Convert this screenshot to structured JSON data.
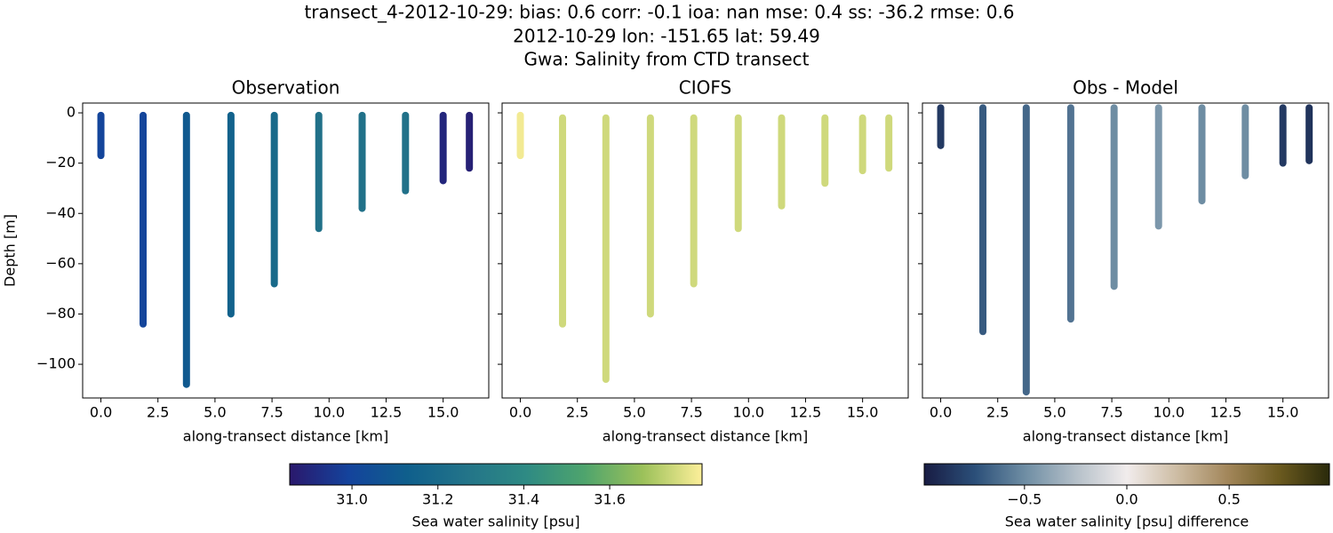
{
  "suptitle": [
    "transect_4-2012-10-29: bias: 0.6  corr: -0.1  ioa: nan  mse: 0.4  ss: -36.2  rmse: 0.6",
    "2012-10-29 lon: -151.65 lat: 59.49",
    "Gwa: Salinity from CTD transect"
  ],
  "colorbars": [
    {
      "label": "Sea water salinity [psu]",
      "lim": [
        30.855,
        31.815
      ],
      "ticks": [
        {
          "value": 31.0,
          "label": "31.0"
        },
        31.2,
        31.4,
        31.6
      ],
      "colors": [
        "#2a186c",
        "#14439c",
        "#0f5f8c",
        "#237489",
        "#2e8a84",
        "#4ea46d",
        "#9cc15a",
        "#fdef9a"
      ]
    },
    {
      "label": "Sea water salinity [psu] difference",
      "lim": [
        -0.99,
        0.99
      ],
      "ticks": [
        {
          "value": -0.5,
          "label": "−0.5"
        },
        {
          "value": 0,
          "label": "0.0"
        },
        0.5
      ],
      "colors": [
        "#181c43",
        "#2b4f79",
        "#6f8ea4",
        "#b5c0c9",
        "#f1ecec",
        "#cdbca3",
        "#a2865a",
        "#6b5a1f",
        "#2a2a0b"
      ]
    }
  ],
  "chart_data": [
    {
      "type": "scatter",
      "title": "Observation",
      "xlabel": "along-transect distance [km]",
      "ylabel": "Depth [m]",
      "colorbar": 0,
      "xlim": [
        -0.8,
        17.0
      ],
      "ylim": [
        -113.4,
        3.9
      ],
      "xticks": [
        {
          "value": 0,
          "label": "0.0"
        },
        2.5,
        {
          "value": 5,
          "label": "5.0"
        },
        7.5,
        {
          "value": 10,
          "label": "10.0"
        },
        12.5,
        {
          "value": 15,
          "label": "15.0"
        }
      ],
      "yticks": [
        0,
        {
          "value": -20,
          "label": "−20"
        },
        {
          "value": -40,
          "label": "−40"
        },
        {
          "value": -60,
          "label": "−60"
        },
        {
          "value": -80,
          "label": "−80"
        },
        {
          "value": -100,
          "label": "−100"
        }
      ],
      "x": [
        0,
        1.85,
        3.75,
        5.7,
        7.6,
        9.55,
        11.45,
        13.35,
        15.0,
        16.15
      ],
      "depth_top": [
        -1,
        -1,
        -1,
        -1,
        -1,
        -1,
        -1,
        -1,
        -1,
        -1
      ],
      "depth_bottom": [
        -17,
        -84,
        -108,
        -80,
        -68,
        -46,
        -38,
        -31,
        -27,
        -22
      ],
      "values": [
        31.0,
        31.0,
        31.1,
        31.15,
        31.2,
        31.25,
        31.25,
        31.25,
        30.9,
        30.88
      ]
    },
    {
      "type": "scatter",
      "title": "CIOFS",
      "colorbar": 0,
      "xlim": [
        -0.8,
        17.0
      ],
      "ylim": [
        -113.4,
        3.9
      ],
      "xticks": [
        {
          "value": 0,
          "label": "0.0"
        },
        2.5,
        {
          "value": 5,
          "label": "5.0"
        },
        7.5,
        {
          "value": 10,
          "label": "10.0"
        },
        12.5,
        {
          "value": 15,
          "label": "15.0"
        }
      ],
      "yticks": [
        0,
        -20,
        -40,
        -60,
        -80,
        -100
      ],
      "xlabel": "along-transect distance [km]",
      "x": [
        0,
        1.85,
        3.75,
        5.7,
        7.6,
        9.55,
        11.45,
        13.35,
        15.0,
        16.15
      ],
      "depth_top": [
        -1,
        -2,
        -2,
        -2,
        -2,
        -2,
        -2,
        -2,
        -2,
        -2
      ],
      "depth_bottom": [
        -17,
        -84,
        -106,
        -80,
        -68,
        -46,
        -37,
        -28,
        -23,
        -22
      ],
      "values": [
        31.8,
        31.75,
        31.75,
        31.75,
        31.75,
        31.75,
        31.75,
        31.75,
        31.75,
        31.75
      ]
    },
    {
      "type": "scatter",
      "title": "Obs - Model",
      "colorbar": 1,
      "xlim": [
        -0.8,
        17.0
      ],
      "ylim": [
        -113.4,
        3.9
      ],
      "xticks": [
        {
          "value": 0,
          "label": "0.0"
        },
        2.5,
        {
          "value": 5,
          "label": "5.0"
        },
        7.5,
        {
          "value": 10,
          "label": "10.0"
        },
        12.5,
        {
          "value": 15,
          "label": "15.0"
        }
      ],
      "yticks": [
        0,
        -20,
        -40,
        -60,
        -80,
        -100
      ],
      "xlabel": "along-transect distance [km]",
      "x": [
        0,
        1.85,
        3.75,
        5.7,
        7.6,
        9.55,
        11.45,
        13.35,
        15.0,
        16.15
      ],
      "depth_top": [
        2,
        2,
        2,
        2,
        2,
        2,
        2,
        2,
        2,
        2
      ],
      "depth_bottom": [
        -13,
        -87,
        -111,
        -82,
        -69,
        -45,
        -35,
        -25,
        -20,
        -19
      ],
      "values": [
        -0.85,
        -0.7,
        -0.65,
        -0.6,
        -0.5,
        -0.45,
        -0.5,
        -0.5,
        -0.85,
        -0.88
      ]
    }
  ]
}
